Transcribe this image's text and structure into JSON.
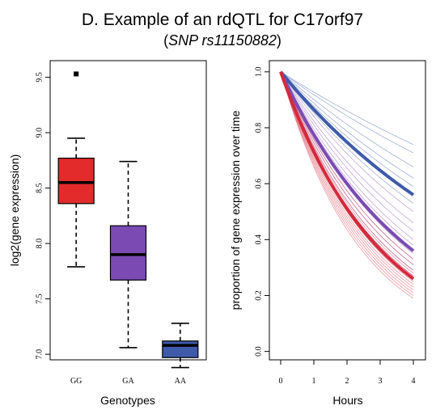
{
  "title": "D. Example of an rdQTL for C17orf97",
  "subtitle": {
    "open": "(",
    "snp": "SNP rs11150882",
    "close": ")"
  },
  "chart_data": [
    {
      "type": "box",
      "xlabel": "Genotypes",
      "ylabel": "log2(gene expression)",
      "ylim": [
        6.95,
        9.65
      ],
      "yticks": [
        "7.0",
        "7.5",
        "8.0",
        "8.5",
        "9.0",
        "9.5"
      ],
      "categories": [
        "GG",
        "GA",
        "AA"
      ],
      "boxes": [
        {
          "name": "GG",
          "color": "#e32b2b",
          "whisker_low": 7.79,
          "q1": 8.36,
          "median": 8.55,
          "q3": 8.77,
          "whisker_high": 8.95,
          "outliers": [
            9.53
          ]
        },
        {
          "name": "GA",
          "color": "#7b4bb3",
          "whisker_low": 7.06,
          "q1": 7.67,
          "median": 7.9,
          "q3": 8.16,
          "whisker_high": 8.74,
          "outliers": []
        },
        {
          "name": "AA",
          "color": "#3e5aaa",
          "whisker_low": 6.88,
          "q1": 6.97,
          "median": 7.08,
          "q3": 7.12,
          "whisker_high": 7.28,
          "outliers": []
        }
      ]
    },
    {
      "type": "line",
      "xlabel": "Hours",
      "ylabel": "proportion of gene expression over time",
      "xlim": [
        0,
        4
      ],
      "ylim": [
        -0.03,
        1.04
      ],
      "xticks": [
        "0",
        "1",
        "2",
        "3",
        "4"
      ],
      "yticks": [
        "0.0",
        "0.2",
        "0.4",
        "0.6",
        "0.8",
        "1.0"
      ],
      "series": [
        {
          "group": "AA",
          "color": "#3e5aaa",
          "bold_end": 0.56,
          "thin_ends": [
            0.74,
            0.71,
            0.66,
            0.62,
            0.59,
            0.53
          ]
        },
        {
          "group": "GA",
          "color": "#7b4bb3",
          "bold_end": 0.36,
          "thin_ends": [
            0.5,
            0.46,
            0.43,
            0.4,
            0.38,
            0.35,
            0.33,
            0.31,
            0.29,
            0.27
          ]
        },
        {
          "group": "GG",
          "color": "#d42a3c",
          "bold_end": 0.26,
          "thin_ends": [
            0.33,
            0.31,
            0.29,
            0.28,
            0.27,
            0.26,
            0.25,
            0.24,
            0.23,
            0.22,
            0.21,
            0.2,
            0.19
          ]
        }
      ]
    }
  ]
}
